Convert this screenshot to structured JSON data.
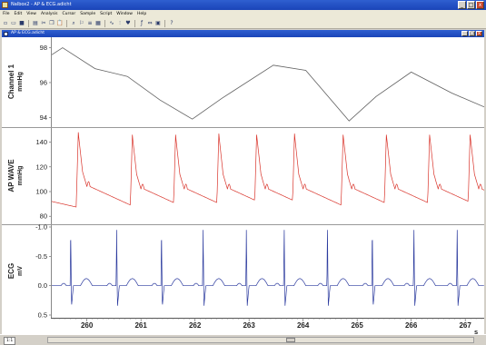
{
  "window": {
    "title": "Nalbox2 - AP & ECG.adicht",
    "min_label": "_",
    "max_label": "□",
    "close_label": "x"
  },
  "menu": [
    "File",
    "Edit",
    "View",
    "Analysis",
    "Cursor",
    "Sample",
    "Script",
    "Window",
    "Help"
  ],
  "toolbar": {
    "icons": [
      "new-file-icon",
      "open-file-icon",
      "save-icon",
      "print-icon",
      "cut-icon",
      "copy-icon",
      "paste-icon",
      "zoom-view-icon",
      "marker-icon",
      "channel-settings-icon",
      "data-pad-icon",
      "scope-icon",
      "spectrum-icon",
      "ecg-analysis-icon",
      "function-icon",
      "compress-icon",
      "page-icon",
      "help-icon"
    ],
    "glyphs": [
      "▫",
      "▭",
      "■",
      "▤",
      "✂",
      "❐",
      "📋",
      "⌕",
      "⚐",
      "≡",
      "▦",
      "∿",
      "⫶",
      "♥",
      "ƒ",
      "⇔",
      "▣",
      "?"
    ]
  },
  "child_window": {
    "title": "AP & ECG.adicht",
    "min_label": "_",
    "max_label": "□",
    "close_label": "x"
  },
  "status": {
    "zoom": "1:1",
    "text": ""
  },
  "colors": {
    "channel1_line": "#606060",
    "ap_wave_line": "#d9342b",
    "ecg_line": "#2b3a9e",
    "grid": "#c0c0c0"
  },
  "chart_data": [
    {
      "type": "line",
      "ylabel": "Channel 1",
      "unit": "mmHg",
      "ylim": [
        93.6,
        98.5
      ],
      "yticks": [
        94,
        96,
        98
      ],
      "x": [
        259.35,
        259.55,
        260.15,
        260.75,
        261.35,
        261.95,
        262.5,
        263.45,
        264.05,
        264.85,
        265.35,
        266.0,
        266.75,
        267.35
      ],
      "y": [
        97.6,
        98.0,
        96.8,
        96.35,
        95.0,
        93.9,
        95.1,
        97.0,
        96.7,
        93.8,
        95.2,
        96.6,
        95.4,
        94.6
      ]
    },
    {
      "type": "line",
      "ylabel": "AP WAVE",
      "unit": "mmHg",
      "ylim": [
        75,
        150
      ],
      "yticks": [
        80,
        100,
        120,
        140
      ],
      "beat_times": [
        259.8,
        260.8,
        261.6,
        262.4,
        263.1,
        263.8,
        264.7,
        265.5,
        266.3,
        267.05
      ],
      "systolic": [
        148,
        146,
        146,
        147,
        146,
        147,
        146,
        146,
        146,
        146
      ],
      "diastolic": [
        86,
        84,
        84,
        84,
        84,
        84,
        84,
        84,
        84,
        84
      ]
    },
    {
      "type": "line",
      "ylabel": "ECG",
      "unit": "mV",
      "ylim_inverted": [
        -1.0,
        0.5
      ],
      "yticks": [
        -1.0,
        -0.5,
        0.0,
        0.5
      ],
      "beat_times": [
        259.7,
        260.55,
        261.38,
        262.15,
        262.95,
        263.65,
        264.45,
        265.28,
        266.05,
        266.85
      ],
      "r_peak": -0.95,
      "s_trough": 0.35
    }
  ],
  "xaxis": {
    "ticks": [
      260,
      261,
      262,
      263,
      264,
      265,
      266,
      267
    ],
    "unit": "s",
    "xlim": [
      259.35,
      267.35
    ]
  }
}
